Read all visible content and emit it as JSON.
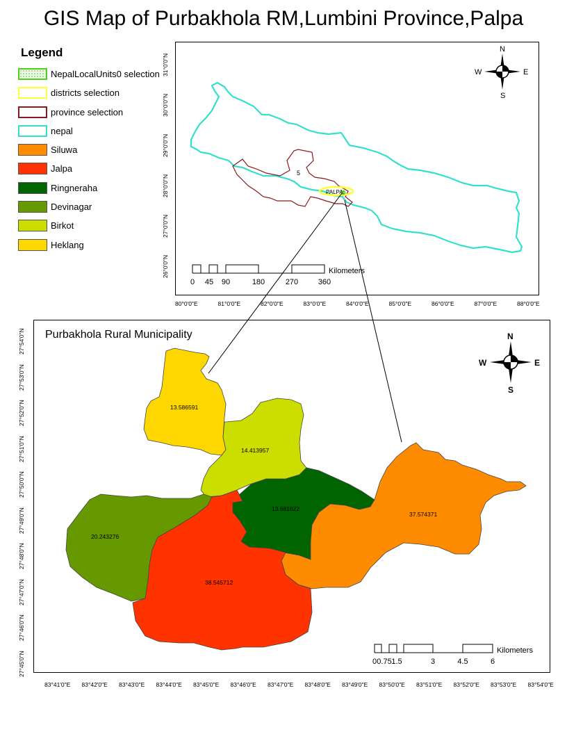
{
  "title": "GIS Map of Purbakhola RM,Lumbini Province,Palpa",
  "legend": {
    "title": "Legend",
    "items": [
      {
        "label": "NepalLocalUnits0 selection",
        "fill": "#ffffff",
        "stroke": "#55cc22",
        "style": "dotted-fill"
      },
      {
        "label": "districts selection",
        "fill": "#ffffff",
        "stroke": "#ffff33",
        "style": "outline"
      },
      {
        "label": "province selection",
        "fill": "#ffffff",
        "stroke": "#8b1a1a",
        "style": "outline"
      },
      {
        "label": "nepal",
        "fill": "#ffffff",
        "stroke": "#33e0cc",
        "style": "outline"
      },
      {
        "label": "Siluwa",
        "fill": "#ff8c00",
        "stroke": "#555555",
        "style": "fill"
      },
      {
        "label": "Jalpa",
        "fill": "#ff3300",
        "stroke": "#555555",
        "style": "fill"
      },
      {
        "label": "Ringneraha",
        "fill": "#006400",
        "stroke": "#555555",
        "style": "fill"
      },
      {
        "label": "Devinagar",
        "fill": "#669900",
        "stroke": "#555555",
        "style": "fill"
      },
      {
        "label": "Birkot",
        "fill": "#ccdd00",
        "stroke": "#555555",
        "style": "fill"
      },
      {
        "label": "Heklang",
        "fill": "#ffd700",
        "stroke": "#555555",
        "style": "fill"
      }
    ]
  },
  "top_map": {
    "province_label": "5",
    "district_label": "PALPA",
    "north_arrow": {
      "n": "N",
      "s": "S",
      "e": "E",
      "w": "W"
    },
    "lat_labels": [
      "31°0'0\"N",
      "30°0'0\"N",
      "29°0'0\"N",
      "28°0'0\"N",
      "27°0'0\"N",
      "26°0'0\"N"
    ],
    "lon_labels": [
      "80°0'0\"E",
      "81°0'0\"E",
      "82°0'0\"E",
      "83°0'0\"E",
      "84°0'0\"E",
      "85°0'0\"E",
      "86°0'0\"E",
      "87°0'0\"E",
      "88°0'0\"E"
    ],
    "scale": {
      "ticks": [
        "0",
        "45",
        "90",
        "180",
        "270",
        "360"
      ],
      "unit": "Kilometers"
    }
  },
  "bottom_map": {
    "title": "Purbakhola Rural Municipality",
    "north_arrow": {
      "n": "N",
      "s": "S",
      "e": "E",
      "w": "W"
    },
    "areas": [
      {
        "name": "Heklang",
        "value": "13.586591"
      },
      {
        "name": "Birkot",
        "value": "14.413957"
      },
      {
        "name": "Ringneraha",
        "value": "13.681622"
      },
      {
        "name": "Siluwa",
        "value": "37.574371"
      },
      {
        "name": "Devinagar",
        "value": "20.243276"
      },
      {
        "name": "Jalpa",
        "value": "38.545712"
      }
    ],
    "lat_labels": [
      "27°54'0\"N",
      "27°53'0\"N",
      "27°52'0\"N",
      "27°51'0\"N",
      "27°50'0\"N",
      "27°49'0\"N",
      "27°48'0\"N",
      "27°47'0\"N",
      "27°46'0\"N",
      "27°45'0\"N"
    ],
    "lon_labels": [
      "83°41'0\"E",
      "83°42'0\"E",
      "83°43'0\"E",
      "83°44'0\"E",
      "83°45'0\"E",
      "83°46'0\"E",
      "83°47'0\"E",
      "83°48'0\"E",
      "83°49'0\"E",
      "83°50'0\"E",
      "83°51'0\"E",
      "83°52'0\"E",
      "83°53'0\"E",
      "83°54'0\"E"
    ],
    "scale": {
      "ticks": [
        "0",
        "0.75",
        "1.5",
        "3",
        "4.5",
        "6"
      ],
      "unit": "Kilometers"
    }
  }
}
